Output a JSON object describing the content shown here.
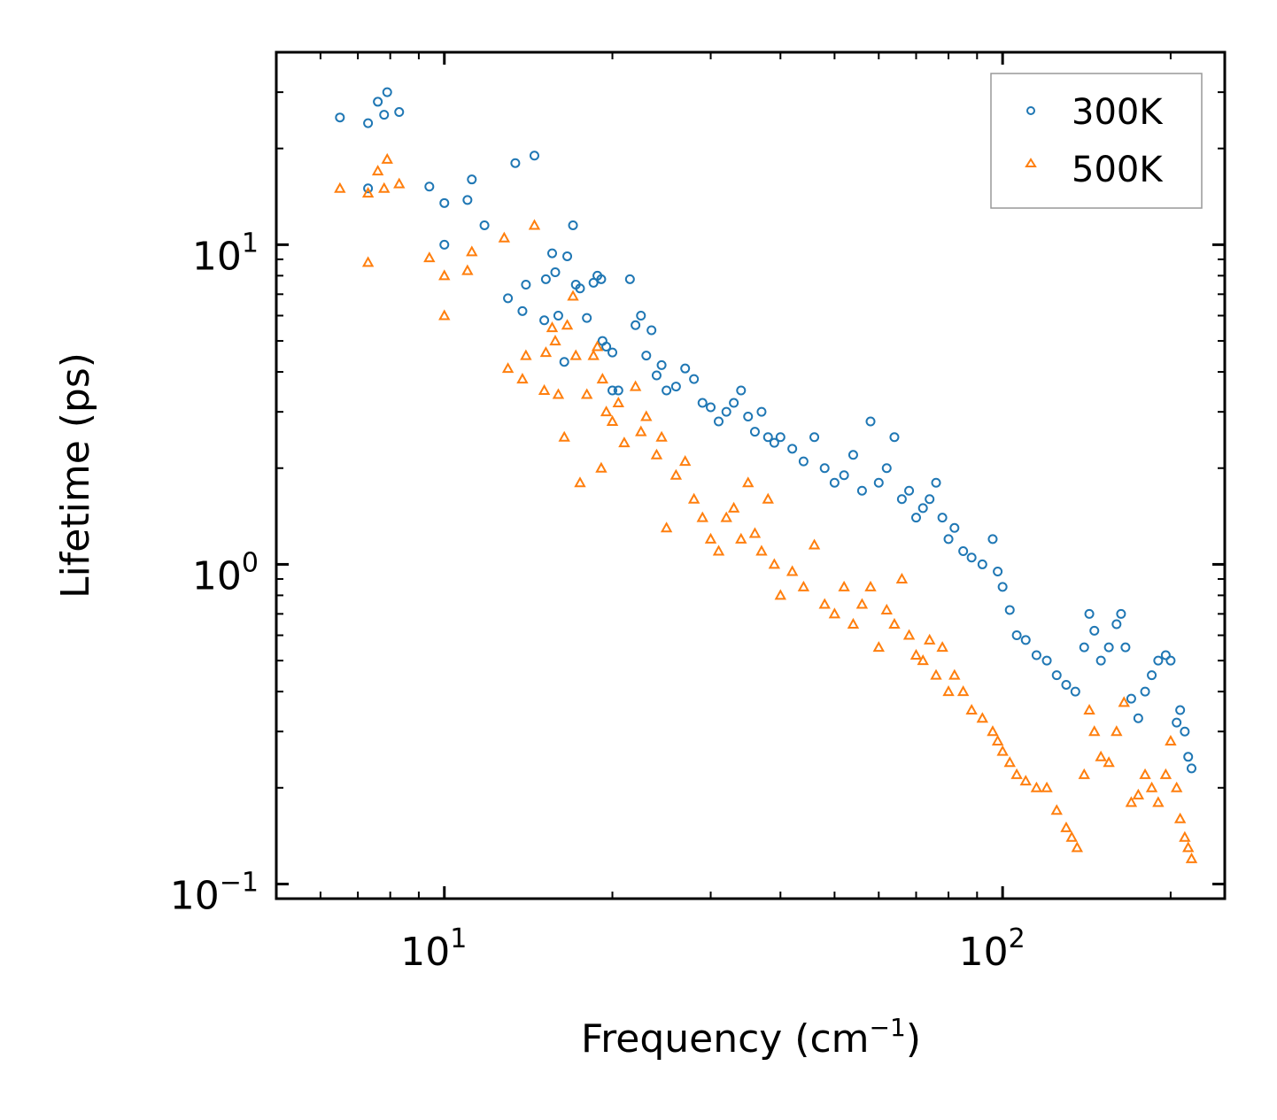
{
  "chart_data": {
    "type": "scatter",
    "title": "",
    "xlabel": "Frequency (cm",
    "xlabel_sup": "−1",
    "xlabel_close": ")",
    "ylabel": "Lifetime (ps)",
    "xscale": "log",
    "yscale": "log",
    "xlim": [
      5,
      250
    ],
    "ylim": [
      0.09,
      40
    ],
    "x_ticks": [
      {
        "value": 10,
        "base": "10",
        "exp": "1"
      },
      {
        "value": 100,
        "base": "10",
        "exp": "2"
      }
    ],
    "y_ticks": [
      {
        "value": 0.1,
        "base": "10",
        "exp": "−1"
      },
      {
        "value": 1,
        "base": "10",
        "exp": "0"
      },
      {
        "value": 10,
        "base": "10",
        "exp": "1"
      }
    ],
    "legend_position": "top-right",
    "series": [
      {
        "name": "300K",
        "color": "#1f77b4",
        "marker": "circle",
        "points": [
          [
            6.5,
            25
          ],
          [
            7.3,
            24
          ],
          [
            7.6,
            28
          ],
          [
            7.8,
            25.5
          ],
          [
            7.9,
            30
          ],
          [
            8.3,
            26
          ],
          [
            7.3,
            15
          ],
          [
            9.4,
            15.2
          ],
          [
            10,
            13.5
          ],
          [
            10,
            10
          ],
          [
            11,
            13.8
          ],
          [
            11.2,
            16
          ],
          [
            11.8,
            11.5
          ],
          [
            13,
            6.8
          ],
          [
            13.4,
            18
          ],
          [
            13.8,
            6.2
          ],
          [
            14,
            7.5
          ],
          [
            14.5,
            19
          ],
          [
            15.1,
            5.8
          ],
          [
            15.2,
            7.8
          ],
          [
            15.6,
            9.4
          ],
          [
            15.8,
            8.2
          ],
          [
            16,
            6
          ],
          [
            16.4,
            4.3
          ],
          [
            16.6,
            9.2
          ],
          [
            17,
            11.5
          ],
          [
            17.2,
            7.5
          ],
          [
            17.5,
            7.3
          ],
          [
            18,
            5.9
          ],
          [
            18.5,
            7.6
          ],
          [
            18.8,
            8
          ],
          [
            19.1,
            7.8
          ],
          [
            19.2,
            5
          ],
          [
            19.5,
            4.8
          ],
          [
            20,
            4.6
          ],
          [
            20,
            3.5
          ],
          [
            20.5,
            3.5
          ],
          [
            21.5,
            7.8
          ],
          [
            22,
            5.6
          ],
          [
            22.5,
            6
          ],
          [
            23,
            4.5
          ],
          [
            23.5,
            5.4
          ],
          [
            24,
            3.9
          ],
          [
            24.5,
            4.2
          ],
          [
            25,
            3.5
          ],
          [
            26,
            3.6
          ],
          [
            27,
            4.1
          ],
          [
            28,
            3.8
          ],
          [
            29,
            3.2
          ],
          [
            30,
            3.1
          ],
          [
            31,
            2.8
          ],
          [
            32,
            3
          ],
          [
            33,
            3.2
          ],
          [
            34,
            3.5
          ],
          [
            35,
            2.9
          ],
          [
            36,
            2.6
          ],
          [
            37,
            3
          ],
          [
            38,
            2.5
          ],
          [
            39,
            2.4
          ],
          [
            40,
            2.5
          ],
          [
            42,
            2.3
          ],
          [
            44,
            2.1
          ],
          [
            46,
            2.5
          ],
          [
            48,
            2
          ],
          [
            50,
            1.8
          ],
          [
            52,
            1.9
          ],
          [
            54,
            2.2
          ],
          [
            56,
            1.7
          ],
          [
            58,
            2.8
          ],
          [
            60,
            1.8
          ],
          [
            62,
            2
          ],
          [
            64,
            2.5
          ],
          [
            66,
            1.6
          ],
          [
            68,
            1.7
          ],
          [
            70,
            1.4
          ],
          [
            72,
            1.5
          ],
          [
            74,
            1.6
          ],
          [
            76,
            1.8
          ],
          [
            78,
            1.4
          ],
          [
            80,
            1.2
          ],
          [
            82,
            1.3
          ],
          [
            85,
            1.1
          ],
          [
            88,
            1.05
          ],
          [
            92,
            1
          ],
          [
            96,
            1.2
          ],
          [
            98,
            0.95
          ],
          [
            100,
            0.85
          ],
          [
            103,
            0.72
          ],
          [
            106,
            0.6
          ],
          [
            110,
            0.58
          ],
          [
            115,
            0.52
          ],
          [
            120,
            0.5
          ],
          [
            125,
            0.45
          ],
          [
            130,
            0.42
          ],
          [
            135,
            0.4
          ],
          [
            140,
            0.55
          ],
          [
            143,
            0.7
          ],
          [
            146,
            0.62
          ],
          [
            150,
            0.5
          ],
          [
            155,
            0.55
          ],
          [
            160,
            0.65
          ],
          [
            163,
            0.7
          ],
          [
            166,
            0.55
          ],
          [
            170,
            0.38
          ],
          [
            175,
            0.33
          ],
          [
            180,
            0.4
          ],
          [
            185,
            0.45
          ],
          [
            190,
            0.5
          ],
          [
            196,
            0.52
          ],
          [
            200,
            0.5
          ],
          [
            205,
            0.32
          ],
          [
            208,
            0.35
          ],
          [
            212,
            0.3
          ],
          [
            215,
            0.25
          ],
          [
            218,
            0.23
          ]
        ]
      },
      {
        "name": "500K",
        "color": "#ff7f0e",
        "marker": "triangle",
        "points": [
          [
            6.5,
            15
          ],
          [
            7.3,
            14.5
          ],
          [
            7.3,
            8.8
          ],
          [
            7.6,
            17
          ],
          [
            7.8,
            15
          ],
          [
            7.9,
            18.5
          ],
          [
            8.3,
            15.5
          ],
          [
            9.4,
            9.1
          ],
          [
            10,
            8
          ],
          [
            10,
            6
          ],
          [
            11,
            8.3
          ],
          [
            11.2,
            9.5
          ],
          [
            12.8,
            10.5
          ],
          [
            13,
            4.1
          ],
          [
            13.8,
            3.8
          ],
          [
            14,
            4.5
          ],
          [
            14.5,
            11.5
          ],
          [
            15.1,
            3.5
          ],
          [
            15.2,
            4.6
          ],
          [
            15.6,
            5.5
          ],
          [
            15.8,
            5
          ],
          [
            16,
            3.4
          ],
          [
            16.4,
            2.5
          ],
          [
            16.6,
            5.6
          ],
          [
            17,
            6.9
          ],
          [
            17.2,
            4.5
          ],
          [
            17.5,
            1.8
          ],
          [
            18,
            3.4
          ],
          [
            18.5,
            4.5
          ],
          [
            18.8,
            4.8
          ],
          [
            19.1,
            2
          ],
          [
            19.2,
            3.8
          ],
          [
            19.5,
            3
          ],
          [
            20,
            2.8
          ],
          [
            20.5,
            3.2
          ],
          [
            21,
            2.4
          ],
          [
            22,
            3.6
          ],
          [
            22.5,
            2.6
          ],
          [
            23,
            2.9
          ],
          [
            24,
            2.2
          ],
          [
            24.5,
            2.5
          ],
          [
            25,
            1.3
          ],
          [
            26,
            1.9
          ],
          [
            27,
            2.1
          ],
          [
            28,
            1.6
          ],
          [
            29,
            1.4
          ],
          [
            30,
            1.2
          ],
          [
            31,
            1.1
          ],
          [
            32,
            1.4
          ],
          [
            33,
            1.5
          ],
          [
            34,
            1.2
          ],
          [
            35,
            1.8
          ],
          [
            36,
            1.25
          ],
          [
            37,
            1.1
          ],
          [
            38,
            1.6
          ],
          [
            39,
            1
          ],
          [
            40,
            0.8
          ],
          [
            42,
            0.95
          ],
          [
            44,
            0.85
          ],
          [
            46,
            1.15
          ],
          [
            48,
            0.75
          ],
          [
            50,
            0.7
          ],
          [
            52,
            0.85
          ],
          [
            54,
            0.65
          ],
          [
            56,
            0.75
          ],
          [
            58,
            0.85
          ],
          [
            60,
            0.55
          ],
          [
            62,
            0.72
          ],
          [
            64,
            0.65
          ],
          [
            66,
            0.9
          ],
          [
            68,
            0.6
          ],
          [
            70,
            0.52
          ],
          [
            72,
            0.5
          ],
          [
            74,
            0.58
          ],
          [
            76,
            0.45
          ],
          [
            78,
            0.55
          ],
          [
            80,
            0.4
          ],
          [
            82,
            0.45
          ],
          [
            85,
            0.4
          ],
          [
            88,
            0.35
          ],
          [
            92,
            0.33
          ],
          [
            96,
            0.3
          ],
          [
            98,
            0.28
          ],
          [
            100,
            0.26
          ],
          [
            103,
            0.24
          ],
          [
            106,
            0.22
          ],
          [
            110,
            0.21
          ],
          [
            115,
            0.2
          ],
          [
            120,
            0.2
          ],
          [
            125,
            0.17
          ],
          [
            130,
            0.15
          ],
          [
            133,
            0.14
          ],
          [
            136,
            0.13
          ],
          [
            140,
            0.22
          ],
          [
            143,
            0.35
          ],
          [
            146,
            0.3
          ],
          [
            150,
            0.25
          ],
          [
            155,
            0.24
          ],
          [
            160,
            0.3
          ],
          [
            165,
            0.37
          ],
          [
            170,
            0.18
          ],
          [
            175,
            0.19
          ],
          [
            180,
            0.22
          ],
          [
            185,
            0.2
          ],
          [
            190,
            0.18
          ],
          [
            196,
            0.22
          ],
          [
            200,
            0.28
          ],
          [
            205,
            0.2
          ],
          [
            208,
            0.16
          ],
          [
            212,
            0.14
          ],
          [
            215,
            0.13
          ],
          [
            218,
            0.12
          ]
        ]
      }
    ]
  }
}
